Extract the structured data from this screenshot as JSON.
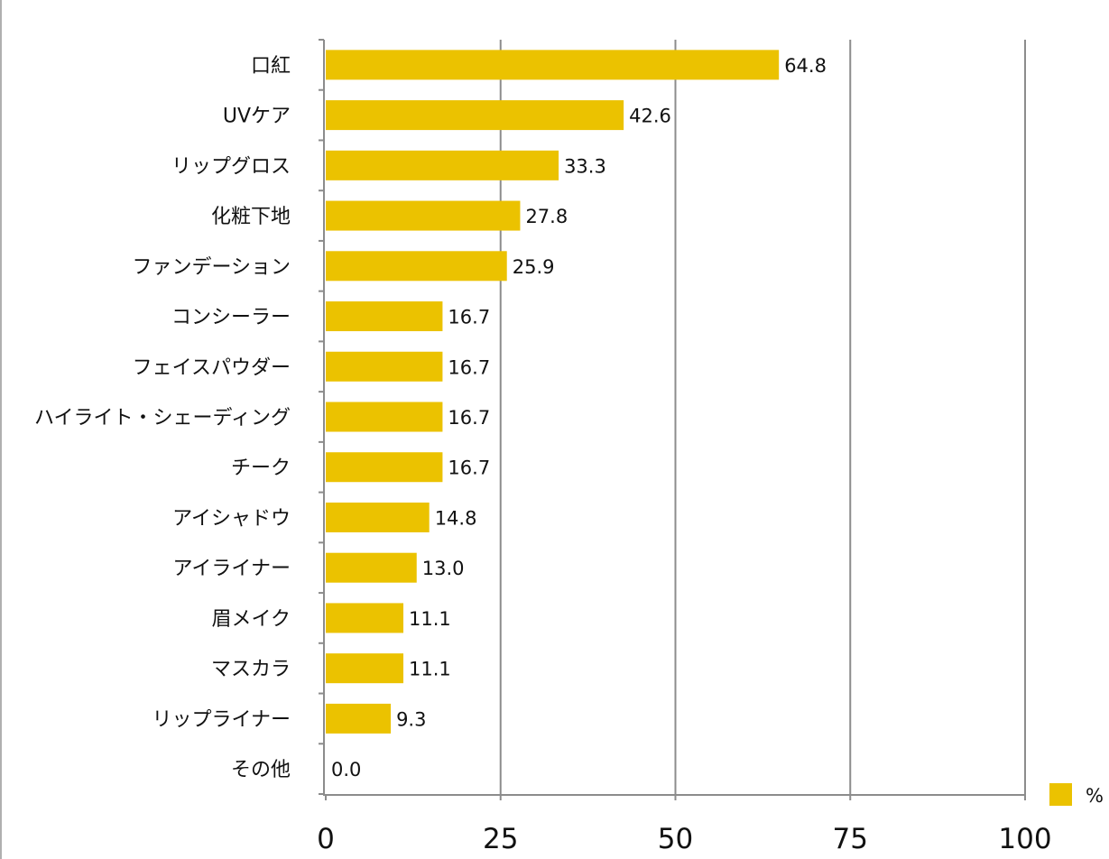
{
  "chart_data": {
    "type": "bar",
    "orientation": "horizontal",
    "categories": [
      "口紅",
      "UVケア",
      "リップグロス",
      "化粧下地",
      "ファンデーション",
      "コンシーラー",
      "フェイスパウダー",
      "ハイライト・シェーディング",
      "チーク",
      "アイシャドウ",
      "アイライナー",
      "眉メイク",
      "マスカラ",
      "リップライナー",
      "その他"
    ],
    "series": [
      {
        "name": "%",
        "values": [
          64.8,
          42.6,
          33.3,
          27.8,
          25.9,
          16.7,
          16.7,
          16.7,
          16.7,
          14.8,
          13.0,
          11.1,
          11.1,
          9.3,
          0.0
        ]
      }
    ],
    "value_labels": [
      "64.8",
      "42.6",
      "33.3",
      "27.8",
      "25.9",
      "16.7",
      "16.7",
      "16.7",
      "16.7",
      "14.8",
      "13.0",
      "11.1",
      "11.1",
      "9.3",
      "0.0"
    ],
    "xticks": [
      0,
      25,
      50,
      75,
      100
    ],
    "xlim": [
      0,
      100
    ],
    "grid": true,
    "legend": "bottom-right",
    "title": "",
    "xlabel": "",
    "ylabel": "",
    "colors": {
      "bar": "#EBC200",
      "grid": "#8c8c8c",
      "axis": "#8c8c8c"
    }
  }
}
